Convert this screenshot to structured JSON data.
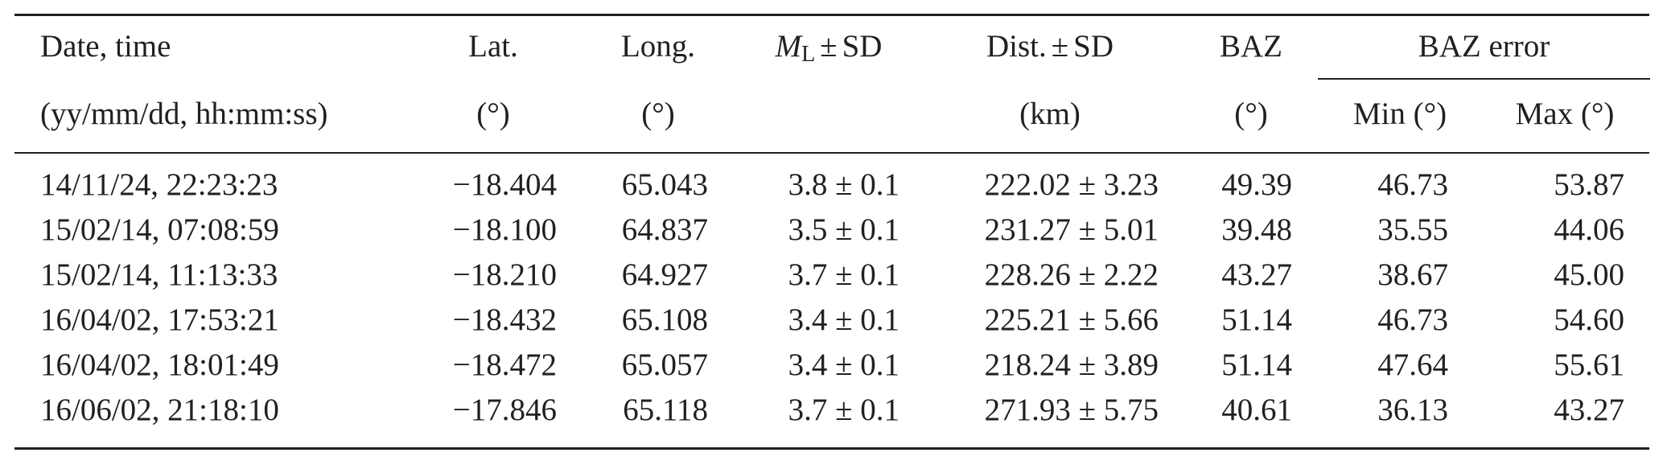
{
  "table": {
    "headers_row1": {
      "date_time": "Date, time",
      "lat": "Lat.",
      "long": "Long.",
      "ml_symbol": "M",
      "ml_sub": "L",
      "ml_pm": "±",
      "ml_sd": "SD",
      "dist": "Dist.",
      "dist_pm": "±",
      "dist_sd": "SD",
      "baz": "BAZ",
      "baz_error": "BAZ error"
    },
    "headers_row2": {
      "date_time_unit": "(yy/mm/dd, hh:mm:ss)",
      "lat_unit": "(°)",
      "long_unit": "(°)",
      "dist_unit": "(km)",
      "baz_unit": "(°)",
      "min": "Min (°)",
      "max": "Max (°)"
    },
    "rows": [
      {
        "date": "14/11/24, 22:23:23",
        "lat": "−18.404",
        "long": "65.043",
        "ml": "3.8 ± 0.1",
        "dist": "222.02 ± 3.23",
        "baz": "49.39",
        "min": "46.73",
        "max": "53.87"
      },
      {
        "date": "15/02/14, 07:08:59",
        "lat": "−18.100",
        "long": "64.837",
        "ml": "3.5 ± 0.1",
        "dist": "231.27 ± 5.01",
        "baz": "39.48",
        "min": "35.55",
        "max": "44.06"
      },
      {
        "date": "15/02/14, 11:13:33",
        "lat": "−18.210",
        "long": "64.927",
        "ml": "3.7 ± 0.1",
        "dist": "228.26 ± 2.22",
        "baz": "43.27",
        "min": "38.67",
        "max": "45.00"
      },
      {
        "date": "16/04/02, 17:53:21",
        "lat": "−18.432",
        "long": "65.108",
        "ml": "3.4 ± 0.1",
        "dist": "225.21 ± 5.66",
        "baz": "51.14",
        "min": "46.73",
        "max": "54.60"
      },
      {
        "date": "16/04/02, 18:01:49",
        "lat": "−18.472",
        "long": "65.057",
        "ml": "3.4 ± 0.1",
        "dist": "218.24 ± 3.89",
        "baz": "51.14",
        "min": "47.64",
        "max": "55.61"
      },
      {
        "date": "16/06/02, 21:18:10",
        "lat": "−17.846",
        "long": "65.118",
        "ml": "3.7 ± 0.1",
        "dist": "271.93 ± 5.75",
        "baz": "40.61",
        "min": "36.13",
        "max": "43.27"
      }
    ]
  }
}
